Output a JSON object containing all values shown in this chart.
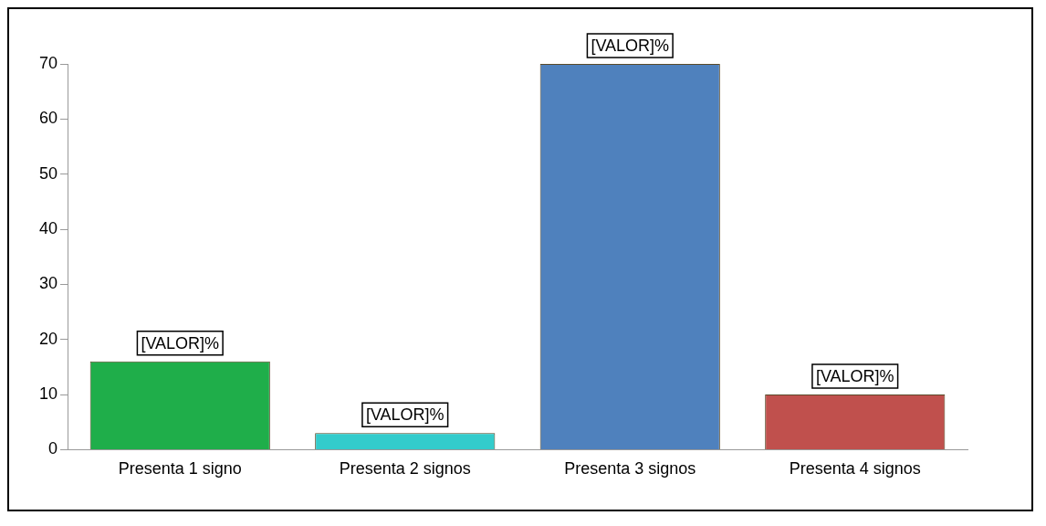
{
  "chart_data": {
    "type": "bar",
    "categories": [
      "Presenta 1 signo",
      "Presenta 2 signos",
      "Presenta 3 signos",
      "Presenta 4 signos"
    ],
    "values": [
      16,
      3,
      70,
      10
    ],
    "colors": [
      "#1fae4a",
      "#33cccc",
      "#4f81bd",
      "#c0504d"
    ],
    "value_labels": [
      "[VALOR]%",
      "[VALOR]%",
      "[VALOR]%",
      "[VALOR]%"
    ],
    "ylim": [
      0,
      70
    ],
    "yticks": [
      0,
      10,
      20,
      30,
      40,
      50,
      60,
      70
    ],
    "grid": false,
    "legend": false
  }
}
